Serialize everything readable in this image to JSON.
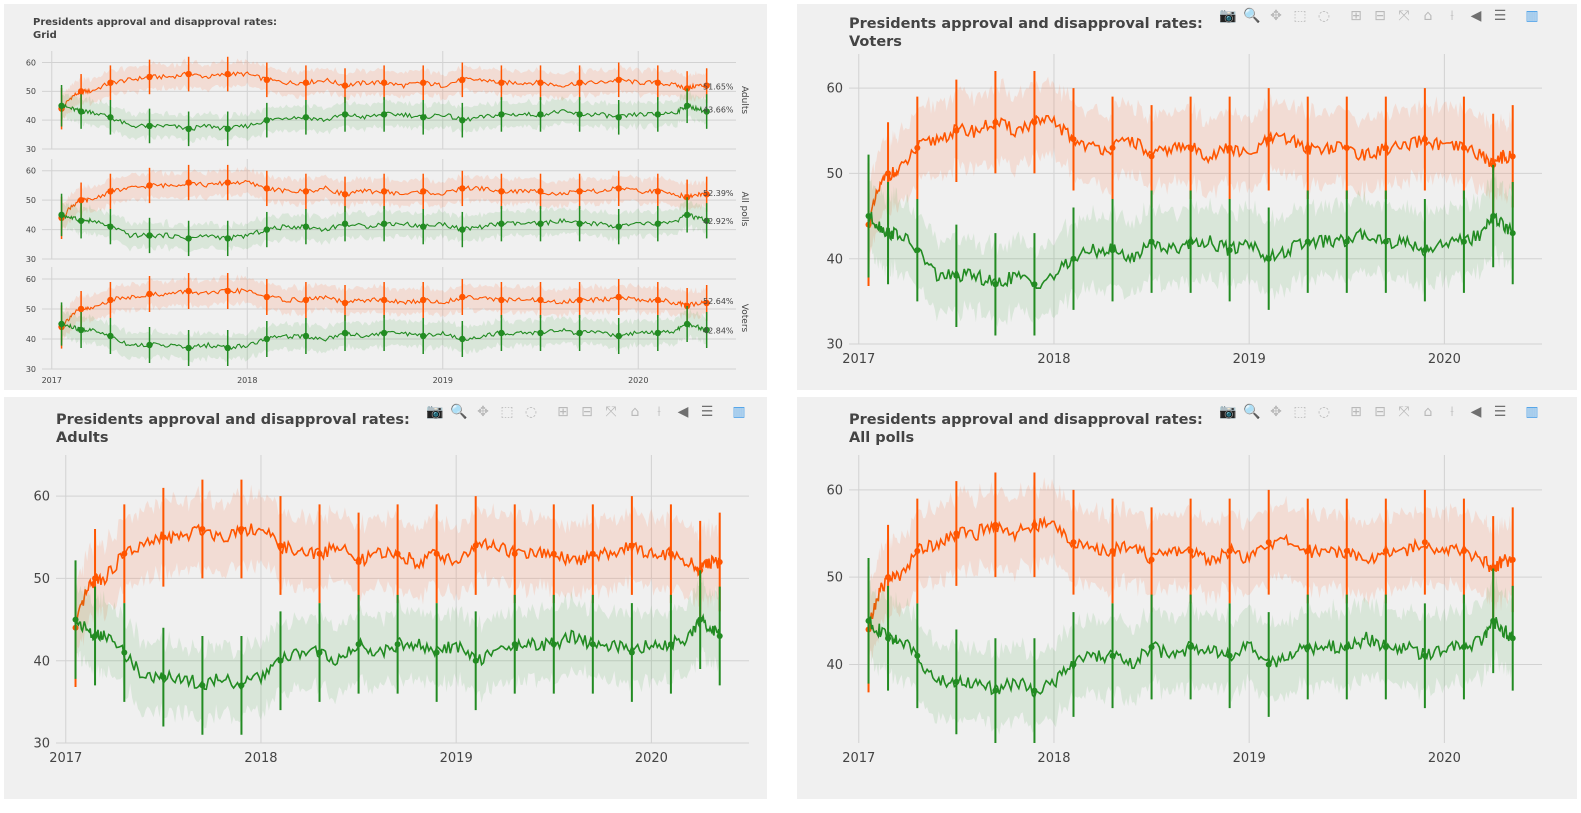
{
  "colors": {
    "disapprove": "#ff5500",
    "approve": "#228b22",
    "disapprove_band": "rgba(255,120,70,0.16)",
    "approve_band": "rgba(60,160,60,0.13)",
    "panel_bg": "#f0f0f0",
    "grid": "#d2d2d2"
  },
  "modebar_icons": [
    "camera-icon",
    "zoom-icon",
    "pan-icon",
    "box-select-icon",
    "lasso-icon",
    "zoom-in-icon",
    "zoom-out-icon",
    "autoscale-icon",
    "home-icon",
    "spike-lines-icon",
    "hover-closest-icon",
    "hover-compare-icon",
    "plotly-logo-icon"
  ],
  "panels": {
    "grid": {
      "title": "Presidents approval and disapproval rates:\n Grid"
    },
    "voters": {
      "title": "Presidents approval and disapproval rates:\nVoters"
    },
    "adults": {
      "title": "Presidents approval and disapproval rates:\nAdults"
    },
    "all_polls": {
      "title": "Presidents approval and disapproval rates:\nAll polls"
    }
  },
  "chart_data": [
    {
      "type": "line",
      "title": "Presidents approval and disapproval rates: Grid",
      "subplots": [
        {
          "strip_label": "Adults",
          "ylim": [
            30,
            64
          ],
          "yticks": [
            30,
            40,
            50,
            60
          ],
          "end_labels": [
            "51.65%",
            "43.66%"
          ],
          "end_values": [
            51.65,
            43.66
          ]
        },
        {
          "strip_label": "All polls",
          "ylim": [
            30,
            64
          ],
          "yticks": [
            30,
            40,
            50,
            60
          ],
          "end_labels": [
            "52.39%",
            "42.92%"
          ],
          "end_values": [
            52.39,
            42.92
          ]
        },
        {
          "strip_label": "Voters",
          "ylim": [
            30,
            64
          ],
          "yticks": [
            30,
            40,
            50,
            60
          ],
          "end_labels": [
            "52.64%",
            "42.84%"
          ],
          "end_values": [
            52.64,
            42.84
          ]
        }
      ],
      "xlim": [
        2016.95,
        2020.5
      ],
      "xticks": [
        2017,
        2018,
        2019,
        2020
      ],
      "xtick_labels": [
        "2017",
        "2018",
        "2019",
        "2020"
      ],
      "series": [
        {
          "values_ref": "disapprove"
        },
        {
          "values_ref": "approve"
        }
      ]
    },
    {
      "type": "line",
      "title": "Presidents approval and disapproval rates: Voters",
      "xlim": [
        2016.95,
        2020.5
      ],
      "ylim": [
        30,
        64
      ],
      "xticks": [
        2017,
        2018,
        2019,
        2020
      ],
      "xtick_labels": [
        "2017",
        "2018",
        "2019",
        "2020"
      ],
      "yticks": [
        30,
        40,
        50,
        60
      ]
    },
    {
      "type": "line",
      "title": "Presidents approval and disapproval rates: Adults",
      "xlim": [
        2016.95,
        2020.5
      ],
      "ylim": [
        30,
        65
      ],
      "xticks": [
        2017,
        2018,
        2019,
        2020
      ],
      "xtick_labels": [
        "2017",
        "2018",
        "2019",
        "2020"
      ],
      "yticks": [
        30,
        40,
        50,
        60
      ]
    },
    {
      "type": "line",
      "title": "Presidents approval and disapproval rates: All polls",
      "xlim": [
        2016.95,
        2020.5
      ],
      "ylim": [
        31,
        64
      ],
      "xticks": [
        2017,
        2018,
        2019,
        2020
      ],
      "xtick_labels": [
        "2017",
        "2018",
        "2019",
        "2020"
      ],
      "yticks": [
        40,
        50,
        60
      ]
    }
  ],
  "series_data": {
    "x": [
      2017.05,
      2017.1,
      2017.15,
      2017.2,
      2017.3,
      2017.4,
      2017.5,
      2017.6,
      2017.7,
      2017.8,
      2017.9,
      2018.0,
      2018.1,
      2018.2,
      2018.3,
      2018.4,
      2018.5,
      2018.6,
      2018.7,
      2018.8,
      2018.9,
      2019.0,
      2019.1,
      2019.2,
      2019.3,
      2019.4,
      2019.5,
      2019.6,
      2019.7,
      2019.8,
      2019.9,
      2020.0,
      2020.1,
      2020.2,
      2020.25,
      2020.3,
      2020.35
    ],
    "disapprove": [
      44,
      48,
      50,
      50,
      53,
      54,
      55,
      55,
      56,
      55,
      56,
      56,
      54,
      53,
      53,
      54,
      52,
      53,
      53,
      52,
      53,
      52,
      54,
      54,
      53,
      53,
      53,
      52,
      53,
      53,
      54,
      53,
      53,
      52,
      51,
      52,
      52
    ],
    "approve": [
      45,
      44,
      43,
      43,
      41,
      38,
      38,
      38,
      37,
      38,
      37,
      38,
      40,
      41,
      41,
      40,
      42,
      41,
      42,
      42,
      41,
      42,
      40,
      41,
      42,
      42,
      42,
      43,
      42,
      42,
      41,
      42,
      42,
      43,
      45,
      44,
      43
    ],
    "band_halfwidth": 4.2,
    "errorbar_halfwidth": 6
  }
}
